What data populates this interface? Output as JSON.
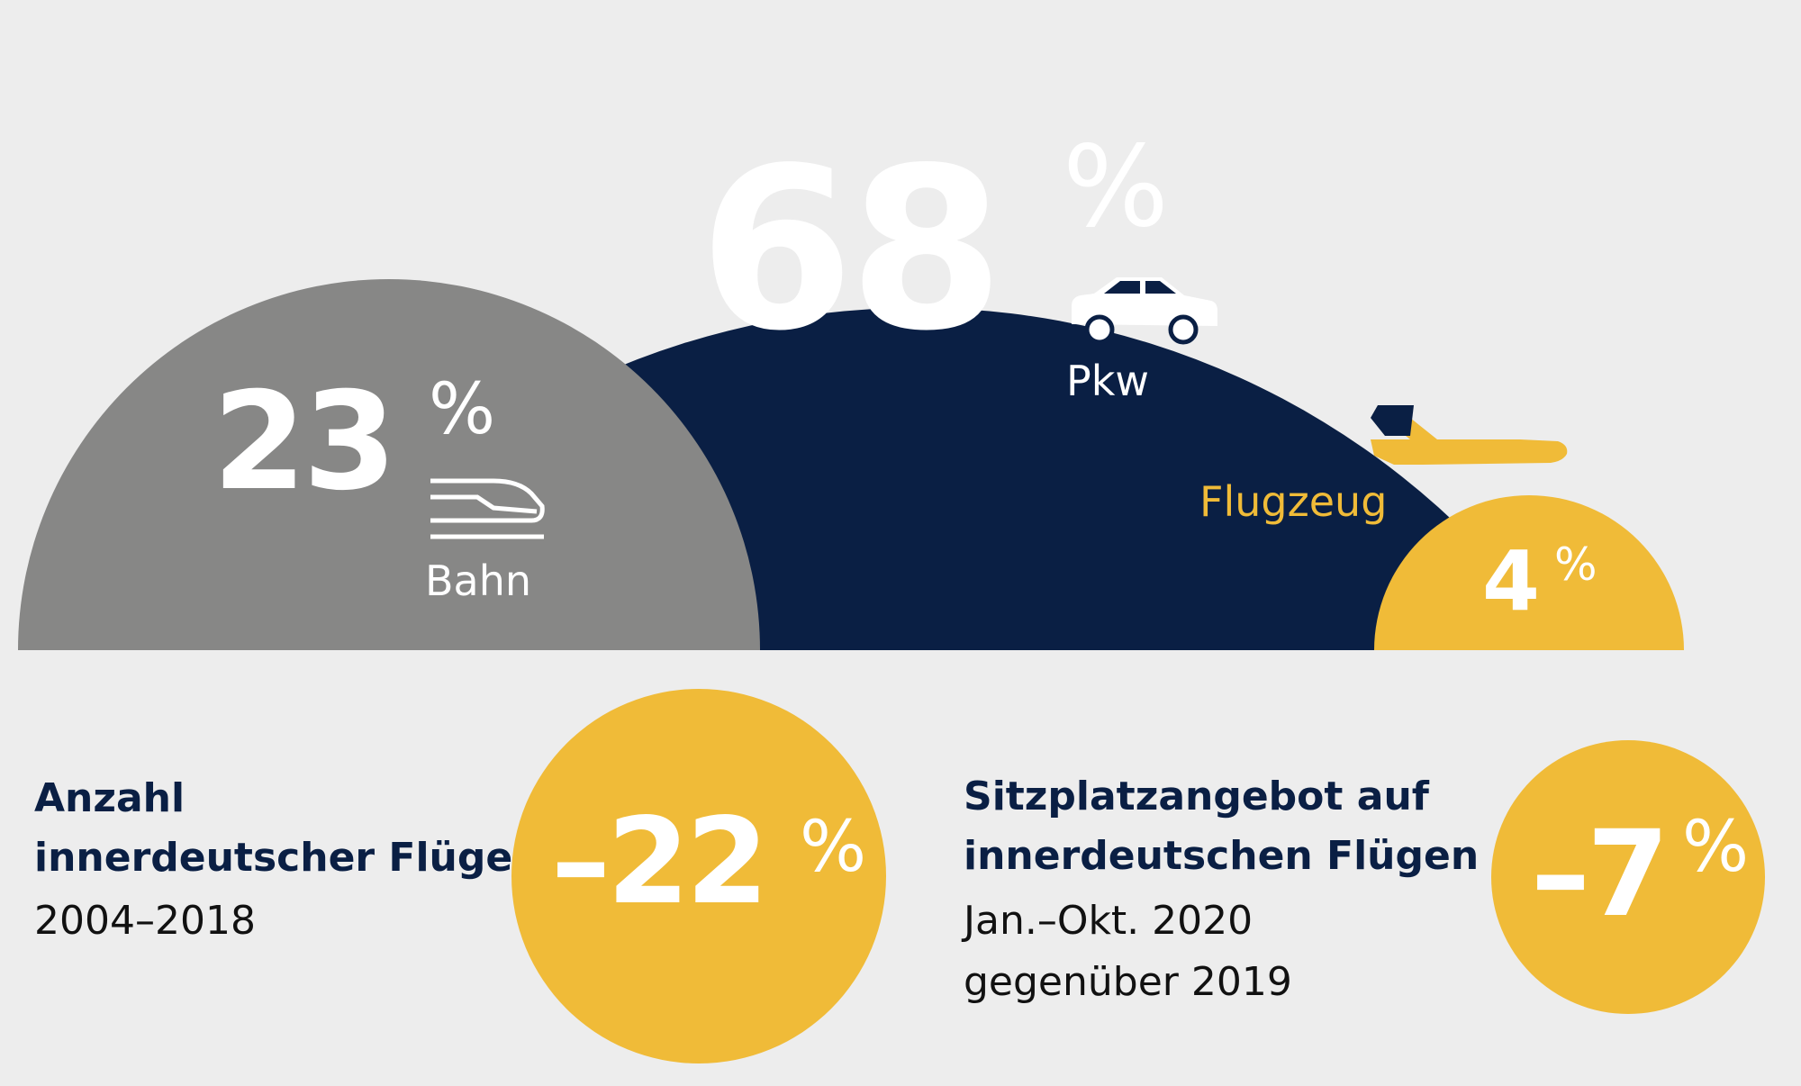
{
  "colors": {
    "background": "#ededed",
    "pkw": "#0a1f44",
    "bahn": "#878786",
    "flugzeug": "#f0bb38",
    "white": "#ffffff"
  },
  "chart_data": {
    "type": "area",
    "series": [
      {
        "name": "Pkw",
        "value": 68,
        "display": "68",
        "unit": "%",
        "color": "#0a1f44",
        "icon": "car-icon"
      },
      {
        "name": "Bahn",
        "value": 23,
        "display": "23",
        "unit": "%",
        "color": "#878786",
        "icon": "train-icon"
      },
      {
        "name": "Flugzeug",
        "value": 4,
        "display": "4",
        "unit": "%",
        "color": "#f0bb38",
        "icon": "airplane-icon"
      }
    ]
  },
  "stats": [
    {
      "title_line1": "Anzahl",
      "title_line2": "innerdeutscher Flüge",
      "sub_line1": "2004–2018",
      "sub_line2": "",
      "value": -22,
      "display": "–22",
      "unit": "%"
    },
    {
      "title_line1": "Sitzplatzangebot auf",
      "title_line2": "innerdeutschen Flügen",
      "sub_line1": "Jan.–Okt. 2020",
      "sub_line2": "gegenüber 2019",
      "value": -7,
      "display": "–7",
      "unit": "%"
    }
  ]
}
